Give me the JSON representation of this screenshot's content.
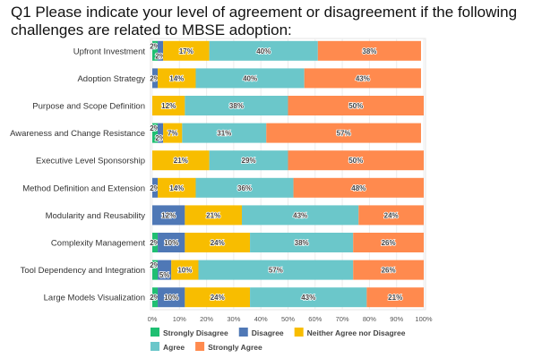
{
  "chart_data": {
    "type": "bar",
    "orientation": "horizontal",
    "stacked": true,
    "title": "Q1 Please indicate your level of agreement or disagreement if the following challenges are related to MBSE adoption:",
    "categories": [
      "Upfront Investment",
      "Adoption Strategy",
      "Purpose and Scope Definition",
      "Awareness and Change Resistance",
      "Executive Level Sponsorship",
      "Method Definition and Extension",
      "Modularity and Reusability",
      "Complexity Management",
      "Tool Dependency and Integration",
      "Large Models Visualization"
    ],
    "series": [
      {
        "name": "Strongly Disagree",
        "color": "#1fbf72",
        "values": [
          2,
          0,
          0,
          2,
          0,
          0,
          0,
          2,
          2,
          2
        ]
      },
      {
        "name": "Disagree",
        "color": "#4f78b6",
        "values": [
          2,
          2,
          0,
          2,
          0,
          2,
          12,
          10,
          5,
          10
        ]
      },
      {
        "name": "Neither Agree nor Disagree",
        "color": "#f8bd00",
        "values": [
          17,
          14,
          12,
          7,
          21,
          14,
          21,
          24,
          10,
          24
        ]
      },
      {
        "name": "Agree",
        "color": "#6bc7ca",
        "values": [
          40,
          40,
          38,
          31,
          29,
          36,
          43,
          38,
          57,
          43
        ]
      },
      {
        "name": "Strongly Agree",
        "color": "#ff8a4e",
        "values": [
          38,
          43,
          50,
          57,
          50,
          48,
          24,
          26,
          26,
          21
        ]
      }
    ],
    "xlim": [
      0,
      100
    ],
    "xticks": [
      "0%",
      "10%",
      "20%",
      "30%",
      "40%",
      "50%",
      "60%",
      "70%",
      "80%",
      "90%",
      "100%"
    ],
    "grid": true,
    "legend": "bottom"
  }
}
